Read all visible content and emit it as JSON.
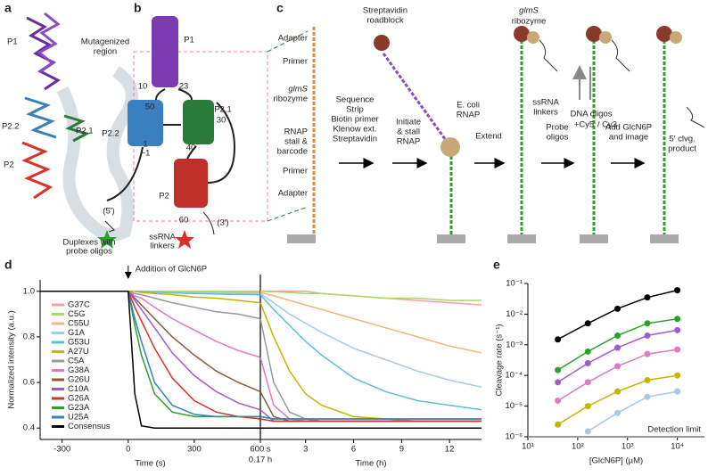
{
  "panel_labels": [
    "a",
    "b",
    "c",
    "d",
    "e"
  ],
  "structure": {
    "helices": [
      "P1",
      "P2.2",
      "P2",
      "P2.1"
    ]
  },
  "secondary": {
    "region": [
      "Mutagenized",
      "region"
    ],
    "helices": [
      "P1",
      "P2.2",
      "P2.1",
      "P2"
    ],
    "positions": [
      "10",
      "23",
      "50",
      "1",
      "−1",
      "40",
      "30",
      "60"
    ],
    "ends": [
      "(5′)",
      "(3′)"
    ],
    "linkers": [
      "ssRNA",
      "linkers"
    ],
    "duplexes": [
      "Duplexes with",
      "probe oligos"
    ]
  },
  "assay": {
    "construct": [
      "Adapter",
      "Primer",
      "glmS",
      "ribozyme",
      "RNAP",
      "stall &",
      "barcode",
      "Primer",
      "Adapter"
    ],
    "roadblock": [
      "Streptavidin",
      "roadblock"
    ],
    "steps": [
      [
        "Sequence",
        "Strip",
        "Biotin primer",
        "Klenow ext.",
        "Streptavidin"
      ],
      [
        "Initiate",
        "& stall",
        "RNAP"
      ],
      [
        "Extend"
      ],
      [
        "Probe",
        "oligos"
      ],
      [
        "Add GlcN6P",
        "and image"
      ]
    ],
    "rnap": [
      "E. coli",
      "RNAP"
    ],
    "ribozyme": [
      "glmS",
      "ribozyme"
    ],
    "linkers": [
      "ssRNA",
      "linkers"
    ],
    "oligos": [
      "DNA oligos",
      "+Cy5",
      "/ Cy3"
    ],
    "product": [
      "5′ clvg.",
      "product"
    ]
  },
  "chart_data": [
    {
      "type": "line",
      "y_label": "Normalized intensity (a.u.)",
      "x_label": "Time (s)",
      "annotation": "Addition of GlcN6P",
      "x": [
        -400,
        0,
        30,
        60,
        120,
        200,
        300,
        400,
        500,
        600
      ],
      "xlim": [
        -400,
        600
      ],
      "xticks": [
        -300,
        0,
        300,
        {
          "value": 600,
          "label": "600 s"
        }
      ],
      "ylim": [
        0.35,
        1.05
      ],
      "yticks": [
        0.4,
        0.6,
        0.8,
        {
          "value": 1,
          "label": "1.0"
        }
      ],
      "series": [
        {
          "name": "G37C",
          "color": "#f4a0a8",
          "values": [
            1,
            1,
            1,
            1,
            1,
            1,
            1,
            1,
            1,
            1
          ]
        },
        {
          "name": "C5G",
          "color": "#a6d96a",
          "values": [
            1,
            1,
            1,
            1,
            1,
            1,
            1,
            1,
            1,
            1
          ]
        },
        {
          "name": "C55U",
          "color": "#f5b57a",
          "values": [
            1,
            1,
            1,
            1,
            0.999,
            0.998,
            0.997,
            0.996,
            0.995,
            0.995
          ]
        },
        {
          "name": "G1A",
          "color": "#a8c8e8",
          "values": [
            1,
            1,
            1,
            1,
            0.998,
            0.996,
            0.994,
            0.992,
            0.991,
            0.99
          ]
        },
        {
          "name": "G53U",
          "color": "#5bc0d0",
          "values": [
            1,
            1,
            1,
            0.998,
            0.996,
            0.993,
            0.99,
            0.988,
            0.986,
            0.985
          ]
        },
        {
          "name": "A27U",
          "color": "#c8b400",
          "values": [
            1,
            1,
            1,
            0.995,
            0.99,
            0.985,
            0.975,
            0.97,
            0.96,
            0.95
          ]
        },
        {
          "name": "C5A",
          "color": "#999999",
          "values": [
            1,
            1,
            0.99,
            0.985,
            0.97,
            0.95,
            0.93,
            0.91,
            0.9,
            0.88
          ]
        },
        {
          "name": "G38A",
          "color": "#e07ac0",
          "values": [
            1,
            1,
            0.98,
            0.97,
            0.93,
            0.88,
            0.83,
            0.78,
            0.74,
            0.71
          ]
        },
        {
          "name": "G26U",
          "color": "#8b5a3c",
          "values": [
            1,
            1,
            0.97,
            0.94,
            0.88,
            0.8,
            0.72,
            0.65,
            0.6,
            0.56
          ]
        },
        {
          "name": "C10A",
          "color": "#a05cc8",
          "values": [
            1,
            1,
            0.96,
            0.92,
            0.84,
            0.73,
            0.63,
            0.56,
            0.51,
            0.48
          ]
        },
        {
          "name": "G26A",
          "color": "#d9302a",
          "values": [
            1,
            1,
            0.93,
            0.87,
            0.75,
            0.62,
            0.52,
            0.47,
            0.45,
            0.44
          ]
        },
        {
          "name": "G23A",
          "color": "#2ca02c",
          "values": [
            1,
            1,
            0.85,
            0.72,
            0.55,
            0.47,
            0.45,
            0.45,
            0.45,
            0.45
          ]
        },
        {
          "name": "U25A",
          "color": "#3a7fbf",
          "values": [
            1,
            1,
            0.88,
            0.78,
            0.6,
            0.5,
            0.46,
            0.45,
            0.45,
            0.45
          ]
        },
        {
          "name": "Consensus",
          "color": "#000000",
          "values": [
            1,
            1,
            0.55,
            0.41,
            0.4,
            0.4,
            0.4,
            0.4,
            0.4,
            0.4
          ]
        }
      ]
    },
    {
      "type": "line",
      "x_label": "Time (h)",
      "x": [
        0.17,
        1,
        2,
        3,
        4,
        6,
        8,
        10,
        12,
        14
      ],
      "xlim": [
        0.17,
        14
      ],
      "xticks": [
        {
          "value": 0.17,
          "label": "0.17 h"
        },
        3,
        6,
        9,
        12
      ],
      "ylim": [
        0.35,
        1.05
      ],
      "series": [
        {
          "color": "#f4a0a8",
          "values": [
            1,
            1,
            1,
            1,
            0.99,
            0.98,
            0.97,
            0.96,
            0.95,
            0.94
          ]
        },
        {
          "color": "#a6d96a",
          "values": [
            1,
            0.998,
            0.995,
            0.99,
            0.99,
            0.98,
            0.97,
            0.97,
            0.96,
            0.96
          ]
        },
        {
          "color": "#f5b57a",
          "values": [
            0.995,
            0.98,
            0.96,
            0.94,
            0.92,
            0.88,
            0.84,
            0.8,
            0.76,
            0.73
          ]
        },
        {
          "color": "#a8c8e8",
          "values": [
            0.99,
            0.95,
            0.9,
            0.86,
            0.82,
            0.75,
            0.7,
            0.65,
            0.61,
            0.58
          ]
        },
        {
          "color": "#5bc0d0",
          "values": [
            0.985,
            0.92,
            0.85,
            0.78,
            0.72,
            0.62,
            0.56,
            0.52,
            0.5,
            0.48
          ]
        },
        {
          "color": "#c8b400",
          "values": [
            0.95,
            0.8,
            0.65,
            0.55,
            0.5,
            0.45,
            0.44,
            0.43,
            0.43,
            0.43
          ]
        },
        {
          "color": "#999999",
          "values": [
            0.88,
            0.6,
            0.47,
            0.44,
            0.43,
            0.43,
            0.43,
            0.43,
            0.43,
            0.43
          ]
        },
        {
          "color": "#e07ac0",
          "values": [
            0.71,
            0.5,
            0.44,
            0.43,
            0.43,
            0.43,
            0.43,
            0.43,
            0.43,
            0.43
          ]
        },
        {
          "color": "#8b5a3c",
          "values": [
            0.56,
            0.45,
            0.43,
            0.43,
            0.43,
            0.43,
            0.43,
            0.43,
            0.43,
            0.43
          ]
        },
        {
          "color": "#a05cc8",
          "values": [
            0.48,
            0.43,
            0.43,
            0.43,
            0.43,
            0.43,
            0.43,
            0.43,
            0.43,
            0.43
          ]
        },
        {
          "color": "#d9302a",
          "values": [
            0.44,
            0.43,
            0.43,
            0.43,
            0.43,
            0.43,
            0.43,
            0.43,
            0.43,
            0.43
          ]
        },
        {
          "color": "#2ca02c",
          "values": [
            0.45,
            0.44,
            0.44,
            0.44,
            0.44,
            0.44,
            0.44,
            0.44,
            0.44,
            0.44
          ]
        },
        {
          "color": "#3a7fbf",
          "values": [
            0.45,
            0.44,
            0.44,
            0.44,
            0.44,
            0.44,
            0.44,
            0.44,
            0.44,
            0.44
          ]
        },
        {
          "color": "#000000",
          "values": [
            0.4,
            0.4,
            0.4,
            0.4,
            0.4,
            0.4,
            0.4,
            0.4,
            0.4,
            0.4
          ]
        }
      ]
    },
    {
      "type": "line",
      "markers": true,
      "log_x": true,
      "log_y": true,
      "y_label": "Cleavage rate (s⁻¹)",
      "x_label": "[GlcN6P] (µM)",
      "annotation": "Detection limit",
      "detection_limit": 1e-06,
      "x": [
        40,
        160,
        630,
        2500,
        10000
      ],
      "xlim": [
        10,
        35000
      ],
      "xticks": [
        {
          "value": 10,
          "label": "10¹"
        },
        {
          "value": 100,
          "label": "10²"
        },
        {
          "value": 1000,
          "label": "10³"
        },
        {
          "value": 10000,
          "label": "10⁴"
        }
      ],
      "ylim": [
        1e-06,
        0.1
      ],
      "yticks": [
        {
          "value": 1e-06,
          "label": "10⁻⁶"
        },
        {
          "value": 1e-05,
          "label": "10⁻⁵"
        },
        {
          "value": 0.0001,
          "label": "10⁻⁴"
        },
        {
          "value": 0.001,
          "label": "10⁻³"
        },
        {
          "value": 0.01,
          "label": "10⁻²"
        },
        {
          "value": 0.1,
          "label": "10⁻¹"
        }
      ],
      "series": [
        {
          "color": "#000000",
          "values": [
            0.0015,
            0.005,
            0.015,
            0.035,
            0.06
          ]
        },
        {
          "color": "#2ca02c",
          "values": [
            0.00015,
            0.0006,
            0.002,
            0.005,
            0.007
          ]
        },
        {
          "color": "#a05cc8",
          "values": [
            6e-05,
            0.00025,
            0.0008,
            0.002,
            0.003
          ]
        },
        {
          "color": "#e07ac0",
          "values": [
            1.5e-05,
            6e-05,
            0.0002,
            0.0005,
            0.0007
          ]
        },
        {
          "color": "#c8b400",
          "values": [
            2.5e-06,
            1e-05,
            3e-05,
            7e-05,
            0.0001
          ]
        },
        {
          "color": "#a8c8e8",
          "values": [
            null,
            1.5e-06,
            6e-06,
            2e-05,
            3e-05
          ]
        }
      ]
    }
  ]
}
